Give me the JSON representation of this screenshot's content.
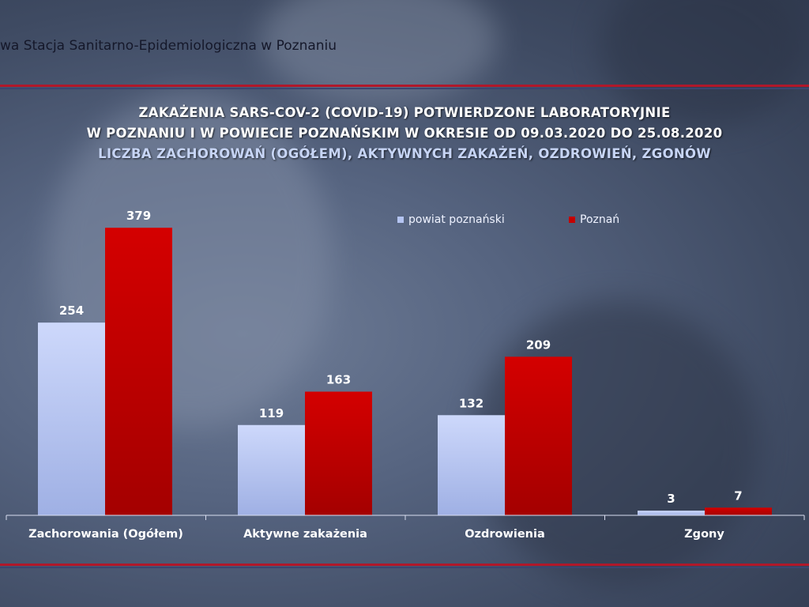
{
  "header": {
    "organization": "wa Stacja Sanitarno-Epidemiologiczna w Poznaniu"
  },
  "colors": {
    "series_1": "#b4c4f2",
    "series_2": "#c40000",
    "rule": "#b0182a"
  },
  "chart_data": {
    "type": "bar",
    "title": "ZAKAŻENIA SARS-COV-2 (COVID-19) POTWIERDZONE LABORATORYJNIE",
    "title_line2": "W POZNANIU I W POWIECIE POZNAŃSKIM W OKRESIE OD 09.03.2020 DO 25.08.2020",
    "subtitle": "LICZBA ZACHOROWAŃ (OGÓŁEM), AKTYWNYCH ZAKAŻEŃ, OZDROWIEŃ, ZGONÓW",
    "categories": [
      "Zachorowania (Ogółem)",
      "Aktywne zakażenia",
      "Ozdrowienia",
      "Zgony"
    ],
    "series": [
      {
        "name": "powiat poznański",
        "values": [
          254,
          119,
          132,
          3
        ]
      },
      {
        "name": "Poznań",
        "values": [
          379,
          163,
          209,
          7
        ]
      }
    ],
    "ylim": [
      0,
      400
    ],
    "legend_position": "top-right",
    "grid": false
  }
}
